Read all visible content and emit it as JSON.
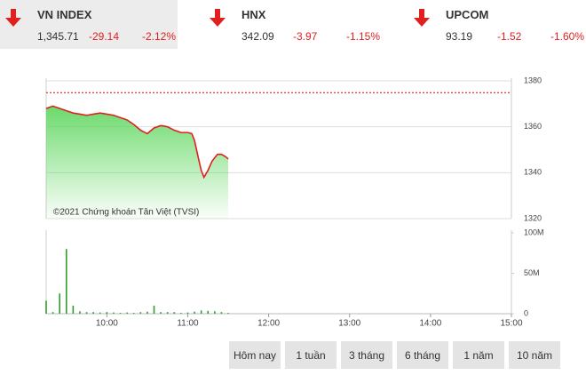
{
  "indices": [
    {
      "name": "VN INDEX",
      "value": "1,345.71",
      "change": "-29.14",
      "percent": "-2.12%"
    },
    {
      "name": "HNX",
      "value": "342.09",
      "change": "-3.97",
      "percent": "-1.15%"
    },
    {
      "name": "UPCOM",
      "value": "93.19",
      "change": "-1.52",
      "percent": "-1.60%"
    }
  ],
  "chart_data": [
    {
      "type": "line",
      "x": [
        555,
        560,
        565,
        570,
        575,
        580,
        585,
        590,
        595,
        600,
        605,
        610,
        615,
        620,
        625,
        630,
        635,
        640,
        645,
        650,
        655,
        660,
        663,
        665,
        668,
        670,
        672,
        675,
        678,
        682,
        685,
        688,
        690
      ],
      "values": [
        1368,
        1369,
        1368,
        1367,
        1366,
        1365.5,
        1365,
        1365.5,
        1366,
        1365.5,
        1365,
        1364,
        1363,
        1361,
        1358.5,
        1357,
        1359.5,
        1360.5,
        1360,
        1358.5,
        1357.5,
        1357.5,
        1357,
        1354,
        1346,
        1341,
        1338,
        1341,
        1345,
        1348,
        1348,
        1347,
        1346
      ],
      "color": "#e0201f",
      "area_color": "#5bd65b",
      "reference_line": 1374.85,
      "reference_color": "#e0201f",
      "xlim": [
        555,
        900
      ],
      "ylim": [
        1320,
        1380
      ],
      "yticks": [
        1320,
        1340,
        1360,
        1380
      ],
      "grid": true,
      "annotation": "©2021 Chứng khoán Tân Việt (TVSI)"
    },
    {
      "type": "bar",
      "x": [
        555,
        560,
        565,
        570,
        575,
        580,
        585,
        590,
        595,
        600,
        605,
        610,
        615,
        620,
        625,
        630,
        635,
        640,
        645,
        650,
        655,
        660,
        665,
        670,
        675,
        680,
        685,
        690
      ],
      "values": [
        16000000,
        2000000,
        25000000,
        80000000,
        10000000,
        3000000,
        2000000,
        2000000,
        1500000,
        2000000,
        1500000,
        1000000,
        1500000,
        1000000,
        2000000,
        2500000,
        10000000,
        2000000,
        2000000,
        2000000,
        1000000,
        1500000,
        2500000,
        4000000,
        3500000,
        3000000,
        2000000,
        1000000
      ],
      "color": "#2e9e2e",
      "xlim": [
        555,
        900
      ],
      "ylim": [
        0,
        100000000
      ],
      "yticks": [
        0,
        {
          "value": 50000000,
          "label": "50M"
        },
        {
          "value": 100000000,
          "label": "100M"
        }
      ],
      "xticks": [
        {
          "value": 600,
          "label": "10:00"
        },
        {
          "value": 660,
          "label": "11:00"
        },
        {
          "value": 720,
          "label": "12:00"
        },
        {
          "value": 780,
          "label": "13:00"
        },
        {
          "value": 840,
          "label": "14:00"
        },
        {
          "value": 900,
          "label": "15:00"
        }
      ]
    }
  ],
  "buttons": [
    "Hôm nay",
    "1 tuần",
    "3 tháng",
    "6 tháng",
    "1 năm",
    "10 năm"
  ]
}
